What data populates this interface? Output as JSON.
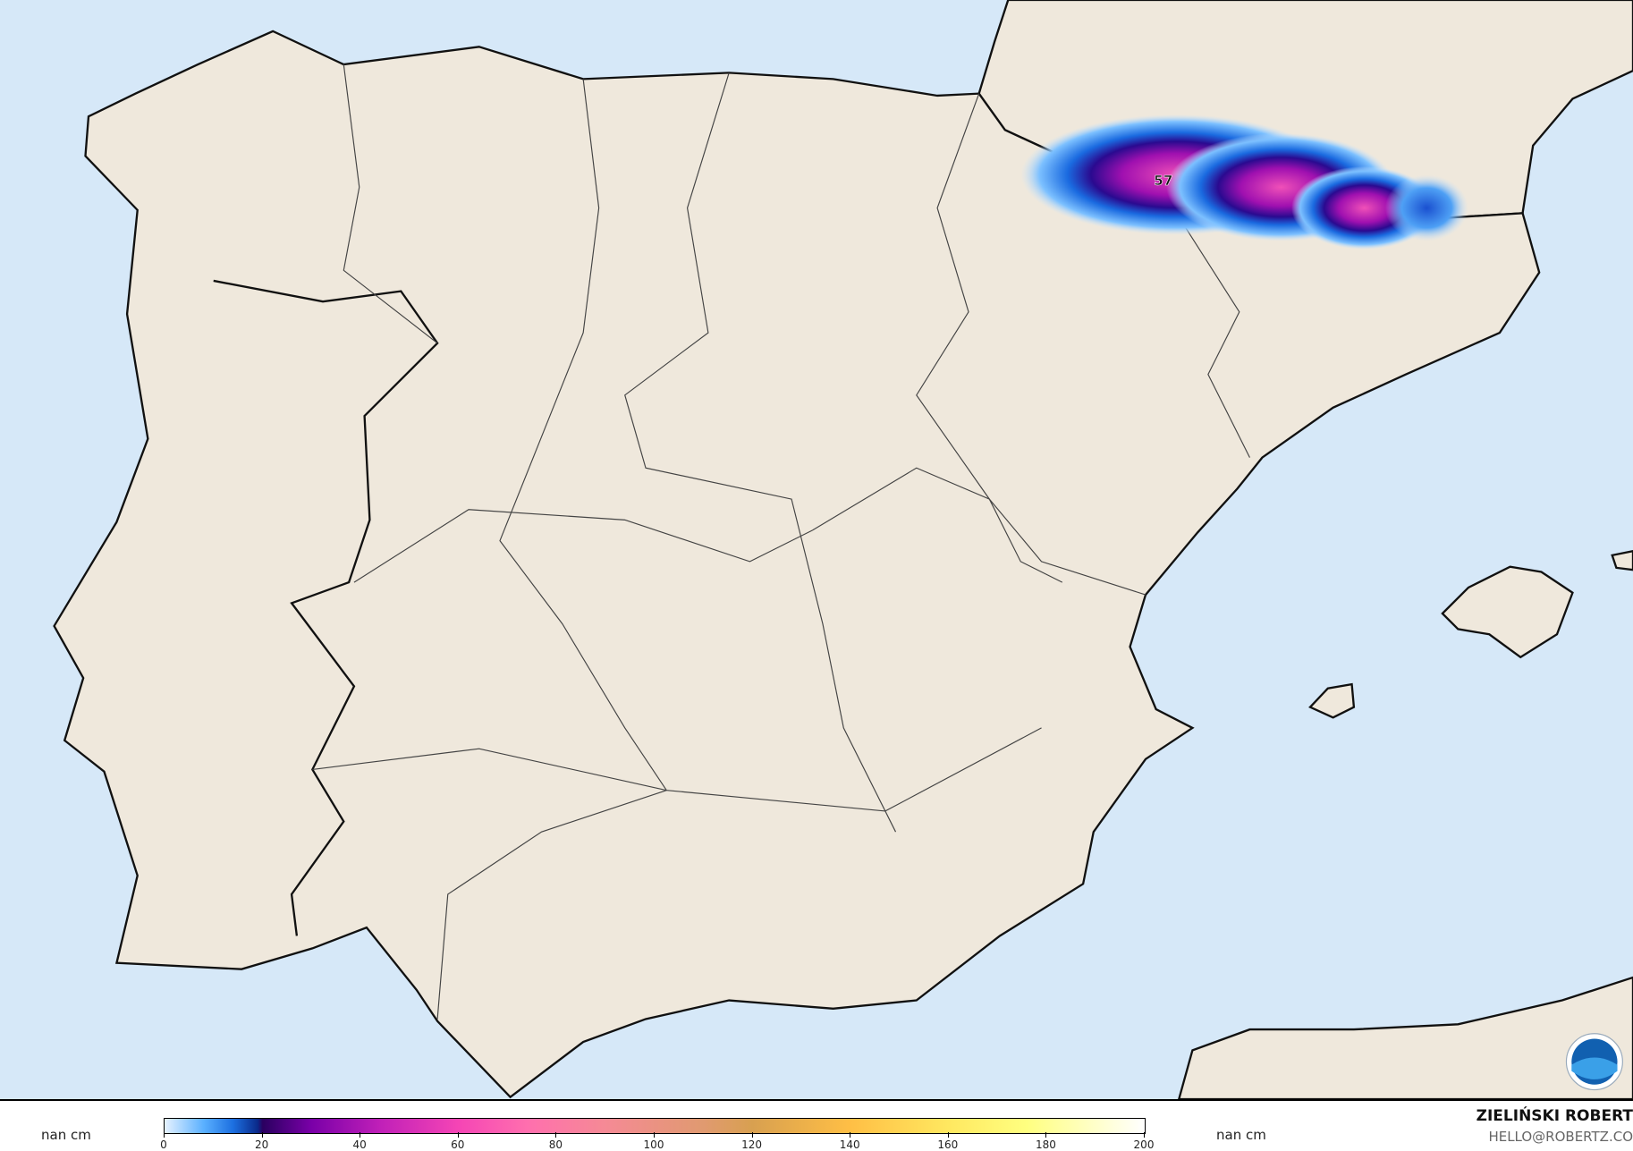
{
  "map": {
    "peak_label": "57",
    "colors": {
      "sea": "#d6e8f8",
      "land": "#efe8dc",
      "border": "#333333"
    },
    "logo": "NOAA"
  },
  "legend": {
    "left_unit": "nan cm",
    "right_unit": "nan cm",
    "ticks": [
      "0",
      "20",
      "40",
      "60",
      "80",
      "100",
      "120",
      "140",
      "160",
      "180",
      "200"
    ],
    "range": [
      0,
      200
    ]
  },
  "credits": {
    "author": "ZIELIŃSKI ROBERT",
    "email": "HELLO@ROBERTZ.CO"
  }
}
